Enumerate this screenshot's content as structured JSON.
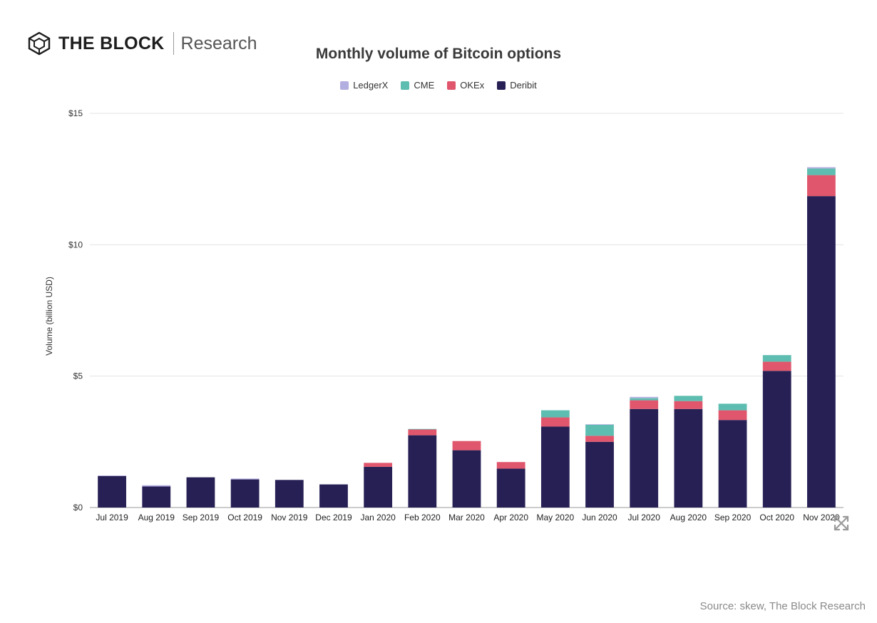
{
  "brand": {
    "name": "THE BLOCK",
    "sub": "Research"
  },
  "source_text": "Source: skew, The Block Research",
  "expand_icon": "expand-icon",
  "colors": {
    "LedgerX": "#b3aee0",
    "CME": "#5dbdb0",
    "OKEx": "#e0566c",
    "Deribit": "#272055"
  },
  "chart_data": {
    "type": "bar",
    "stacked": true,
    "title": "Monthly volume of Bitcoin options",
    "xlabel": "",
    "ylabel": "Volume (billion USD)",
    "ylim": [
      0,
      15
    ],
    "yticks": [
      0,
      5,
      10,
      15
    ],
    "ytick_labels": [
      "$0",
      "$5",
      "$10",
      "$15"
    ],
    "grid": true,
    "legend_position": "top-center",
    "categories": [
      "Jul 2019",
      "Aug 2019",
      "Sep 2019",
      "Oct 2019",
      "Nov 2019",
      "Dec 2019",
      "Jan 2020",
      "Feb 2020",
      "Mar 2020",
      "Apr 2020",
      "May 2020",
      "Jun 2020",
      "Jul 2020",
      "Aug 2020",
      "Sep 2020",
      "Oct 2020",
      "Nov 2020"
    ],
    "series": [
      {
        "name": "Deribit",
        "values": [
          1.2,
          0.8,
          1.15,
          1.07,
          1.05,
          0.88,
          1.55,
          2.75,
          2.18,
          1.48,
          3.08,
          2.5,
          3.75,
          3.75,
          3.33,
          5.2,
          11.85
        ]
      },
      {
        "name": "OKEx",
        "values": [
          0.0,
          0.0,
          0.0,
          0.0,
          0.0,
          0.0,
          0.15,
          0.22,
          0.35,
          0.25,
          0.35,
          0.23,
          0.33,
          0.3,
          0.37,
          0.35,
          0.8
        ]
      },
      {
        "name": "CME",
        "values": [
          0.0,
          0.0,
          0.0,
          0.0,
          0.0,
          0.0,
          0.0,
          0.02,
          0.0,
          0.0,
          0.27,
          0.42,
          0.08,
          0.2,
          0.25,
          0.25,
          0.25
        ]
      },
      {
        "name": "LedgerX",
        "values": [
          0.02,
          0.05,
          0.0,
          0.03,
          0.0,
          0.0,
          0.0,
          0.0,
          0.0,
          0.0,
          0.0,
          0.02,
          0.05,
          0.0,
          0.0,
          0.0,
          0.05
        ]
      }
    ],
    "legend_order": [
      "LedgerX",
      "CME",
      "OKEx",
      "Deribit"
    ]
  }
}
